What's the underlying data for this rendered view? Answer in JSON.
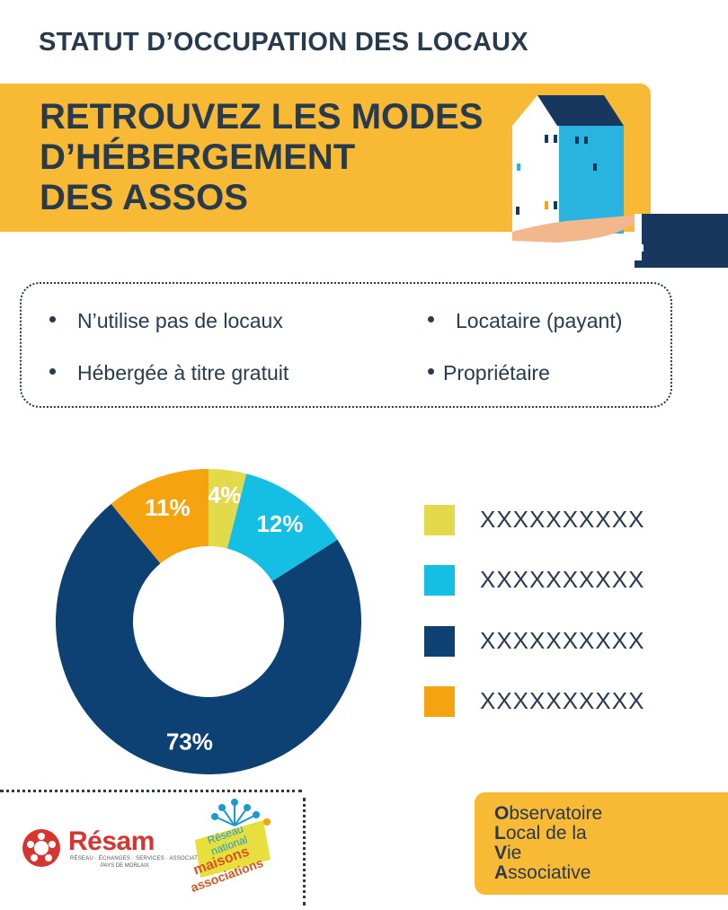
{
  "header": {
    "title": "STATUT D’OCCUPATION DES LOCAUX"
  },
  "banner": {
    "lines": [
      "RETROUVEZ LES MODES",
      "D’HÉBERGEMENT",
      "DES ASSOS"
    ]
  },
  "legend_box": {
    "items": [
      "N’utilise pas de locaux",
      "Locataire (payant)",
      "Hébergée à titre gratuit",
      "Propriétaire"
    ]
  },
  "chart_data": {
    "type": "pie",
    "donut": true,
    "categories": [
      "XXXXXXXXXX",
      "XXXXXXXXXX",
      "XXXXXXXXXX",
      "XXXXXXXXXX"
    ],
    "values": [
      4,
      12,
      73,
      11
    ],
    "labels": [
      "4%",
      "12%",
      "73%",
      "11%"
    ],
    "colors": [
      "#e2da4a",
      "#15bee3",
      "#0d4174",
      "#f5a30e"
    ],
    "legend_position": "right"
  },
  "footer": {
    "resam": {
      "name": "Résam",
      "tagline": "RÉSEAU · ÉCHANGES · SERVICES · ASSOCIATIONS",
      "tagline2": "PAYS DE MORLAIX"
    },
    "rnma": {
      "line1": "Réseau",
      "line2": "national",
      "line3": "maisons",
      "line4": "associations"
    },
    "olva": {
      "initials": [
        "O",
        "L",
        "V",
        "A"
      ],
      "rests": [
        "bservatoire",
        "ocal de la",
        "ie",
        "ssociative"
      ]
    }
  },
  "colors": {
    "banner": "#f8b934",
    "text": "#283a4e",
    "resam_red": "#d7352f"
  }
}
